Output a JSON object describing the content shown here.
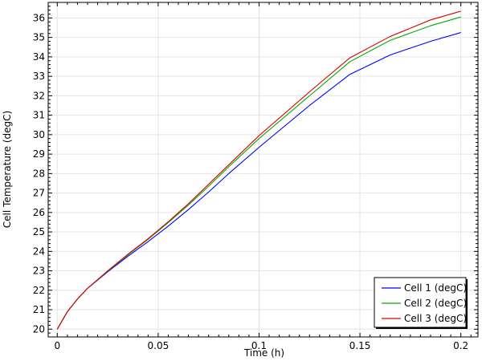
{
  "chart_data": {
    "type": "line",
    "title": "",
    "xlabel": "Time (h)",
    "ylabel": "Cell Temperature (degC)",
    "xlim": [
      -0.0045,
      0.2085
    ],
    "ylim": [
      19.6,
      36.8
    ],
    "xticks": [
      0,
      0.05,
      0.1,
      0.15,
      0.2
    ],
    "xtick_labels": [
      "0",
      "0.05",
      "0.1",
      "0.15",
      "0.2"
    ],
    "yticks": [
      20,
      21,
      22,
      23,
      24,
      25,
      26,
      27,
      28,
      29,
      30,
      31,
      32,
      33,
      34,
      35,
      36
    ],
    "grid": true,
    "legend_position": "bottom-right",
    "series": [
      {
        "name": "Cell 1 (degC)",
        "color": "#0000ff",
        "x": [
          0,
          0.005,
          0.01,
          0.015,
          0.025,
          0.035,
          0.045,
          0.055,
          0.065,
          0.075,
          0.085,
          0.1,
          0.125,
          0.145,
          0.165,
          0.185,
          0.2
        ],
        "y": [
          20.0,
          20.9,
          21.55,
          22.1,
          22.95,
          23.75,
          24.5,
          25.3,
          26.15,
          27.05,
          28.0,
          29.35,
          31.5,
          33.1,
          34.1,
          34.8,
          35.25
        ]
      },
      {
        "name": "Cell 2 (degC)",
        "color": "#00aa00",
        "x": [
          0,
          0.005,
          0.01,
          0.015,
          0.025,
          0.035,
          0.045,
          0.055,
          0.065,
          0.075,
          0.085,
          0.1,
          0.125,
          0.145,
          0.165,
          0.185,
          0.2
        ],
        "y": [
          20.0,
          20.9,
          21.55,
          22.1,
          22.98,
          23.82,
          24.62,
          25.48,
          26.38,
          27.35,
          28.35,
          29.8,
          32.0,
          33.75,
          34.85,
          35.6,
          36.05
        ]
      },
      {
        "name": "Cell 3 (degC)",
        "color": "#dd0000",
        "x": [
          0,
          0.005,
          0.01,
          0.015,
          0.025,
          0.035,
          0.045,
          0.055,
          0.065,
          0.075,
          0.085,
          0.1,
          0.125,
          0.145,
          0.165,
          0.185,
          0.2
        ],
        "y": [
          20.0,
          20.9,
          21.55,
          22.1,
          23.0,
          23.85,
          24.65,
          25.52,
          26.45,
          27.45,
          28.45,
          29.95,
          32.2,
          33.95,
          35.05,
          35.9,
          36.35
        ]
      }
    ]
  }
}
